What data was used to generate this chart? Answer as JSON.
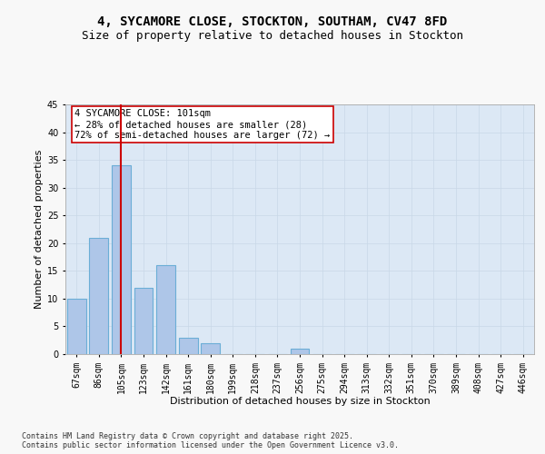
{
  "title_line1": "4, SYCAMORE CLOSE, STOCKTON, SOUTHAM, CV47 8FD",
  "title_line2": "Size of property relative to detached houses in Stockton",
  "categories": [
    "67sqm",
    "86sqm",
    "105sqm",
    "123sqm",
    "142sqm",
    "161sqm",
    "180sqm",
    "199sqm",
    "218sqm",
    "237sqm",
    "256sqm",
    "275sqm",
    "294sqm",
    "313sqm",
    "332sqm",
    "351sqm",
    "370sqm",
    "389sqm",
    "408sqm",
    "427sqm",
    "446sqm"
  ],
  "values": [
    10,
    21,
    34,
    12,
    16,
    3,
    2,
    0,
    0,
    0,
    1,
    0,
    0,
    0,
    0,
    0,
    0,
    0,
    0,
    0,
    0
  ],
  "bar_color": "#aec6e8",
  "bar_edge_color": "#6baed6",
  "bar_linewidth": 0.8,
  "redline_index": 2,
  "redline_color": "#cc0000",
  "redline_linewidth": 1.5,
  "annotation_text": "4 SYCAMORE CLOSE: 101sqm\n← 28% of detached houses are smaller (28)\n72% of semi-detached houses are larger (72) →",
  "annotation_box_color": "#ffffff",
  "annotation_box_edge": "#cc0000",
  "xlabel": "Distribution of detached houses by size in Stockton",
  "ylabel": "Number of detached properties",
  "ylim": [
    0,
    45
  ],
  "yticks": [
    0,
    5,
    10,
    15,
    20,
    25,
    30,
    35,
    40,
    45
  ],
  "grid_color": "#c8d8e8",
  "background_color": "#dce8f5",
  "fig_background": "#f8f8f8",
  "footnote": "Contains HM Land Registry data © Crown copyright and database right 2025.\nContains public sector information licensed under the Open Government Licence v3.0.",
  "title_fontsize": 10,
  "subtitle_fontsize": 9,
  "xlabel_fontsize": 8,
  "ylabel_fontsize": 8,
  "tick_fontsize": 7,
  "annotation_fontsize": 7.5,
  "footnote_fontsize": 6
}
